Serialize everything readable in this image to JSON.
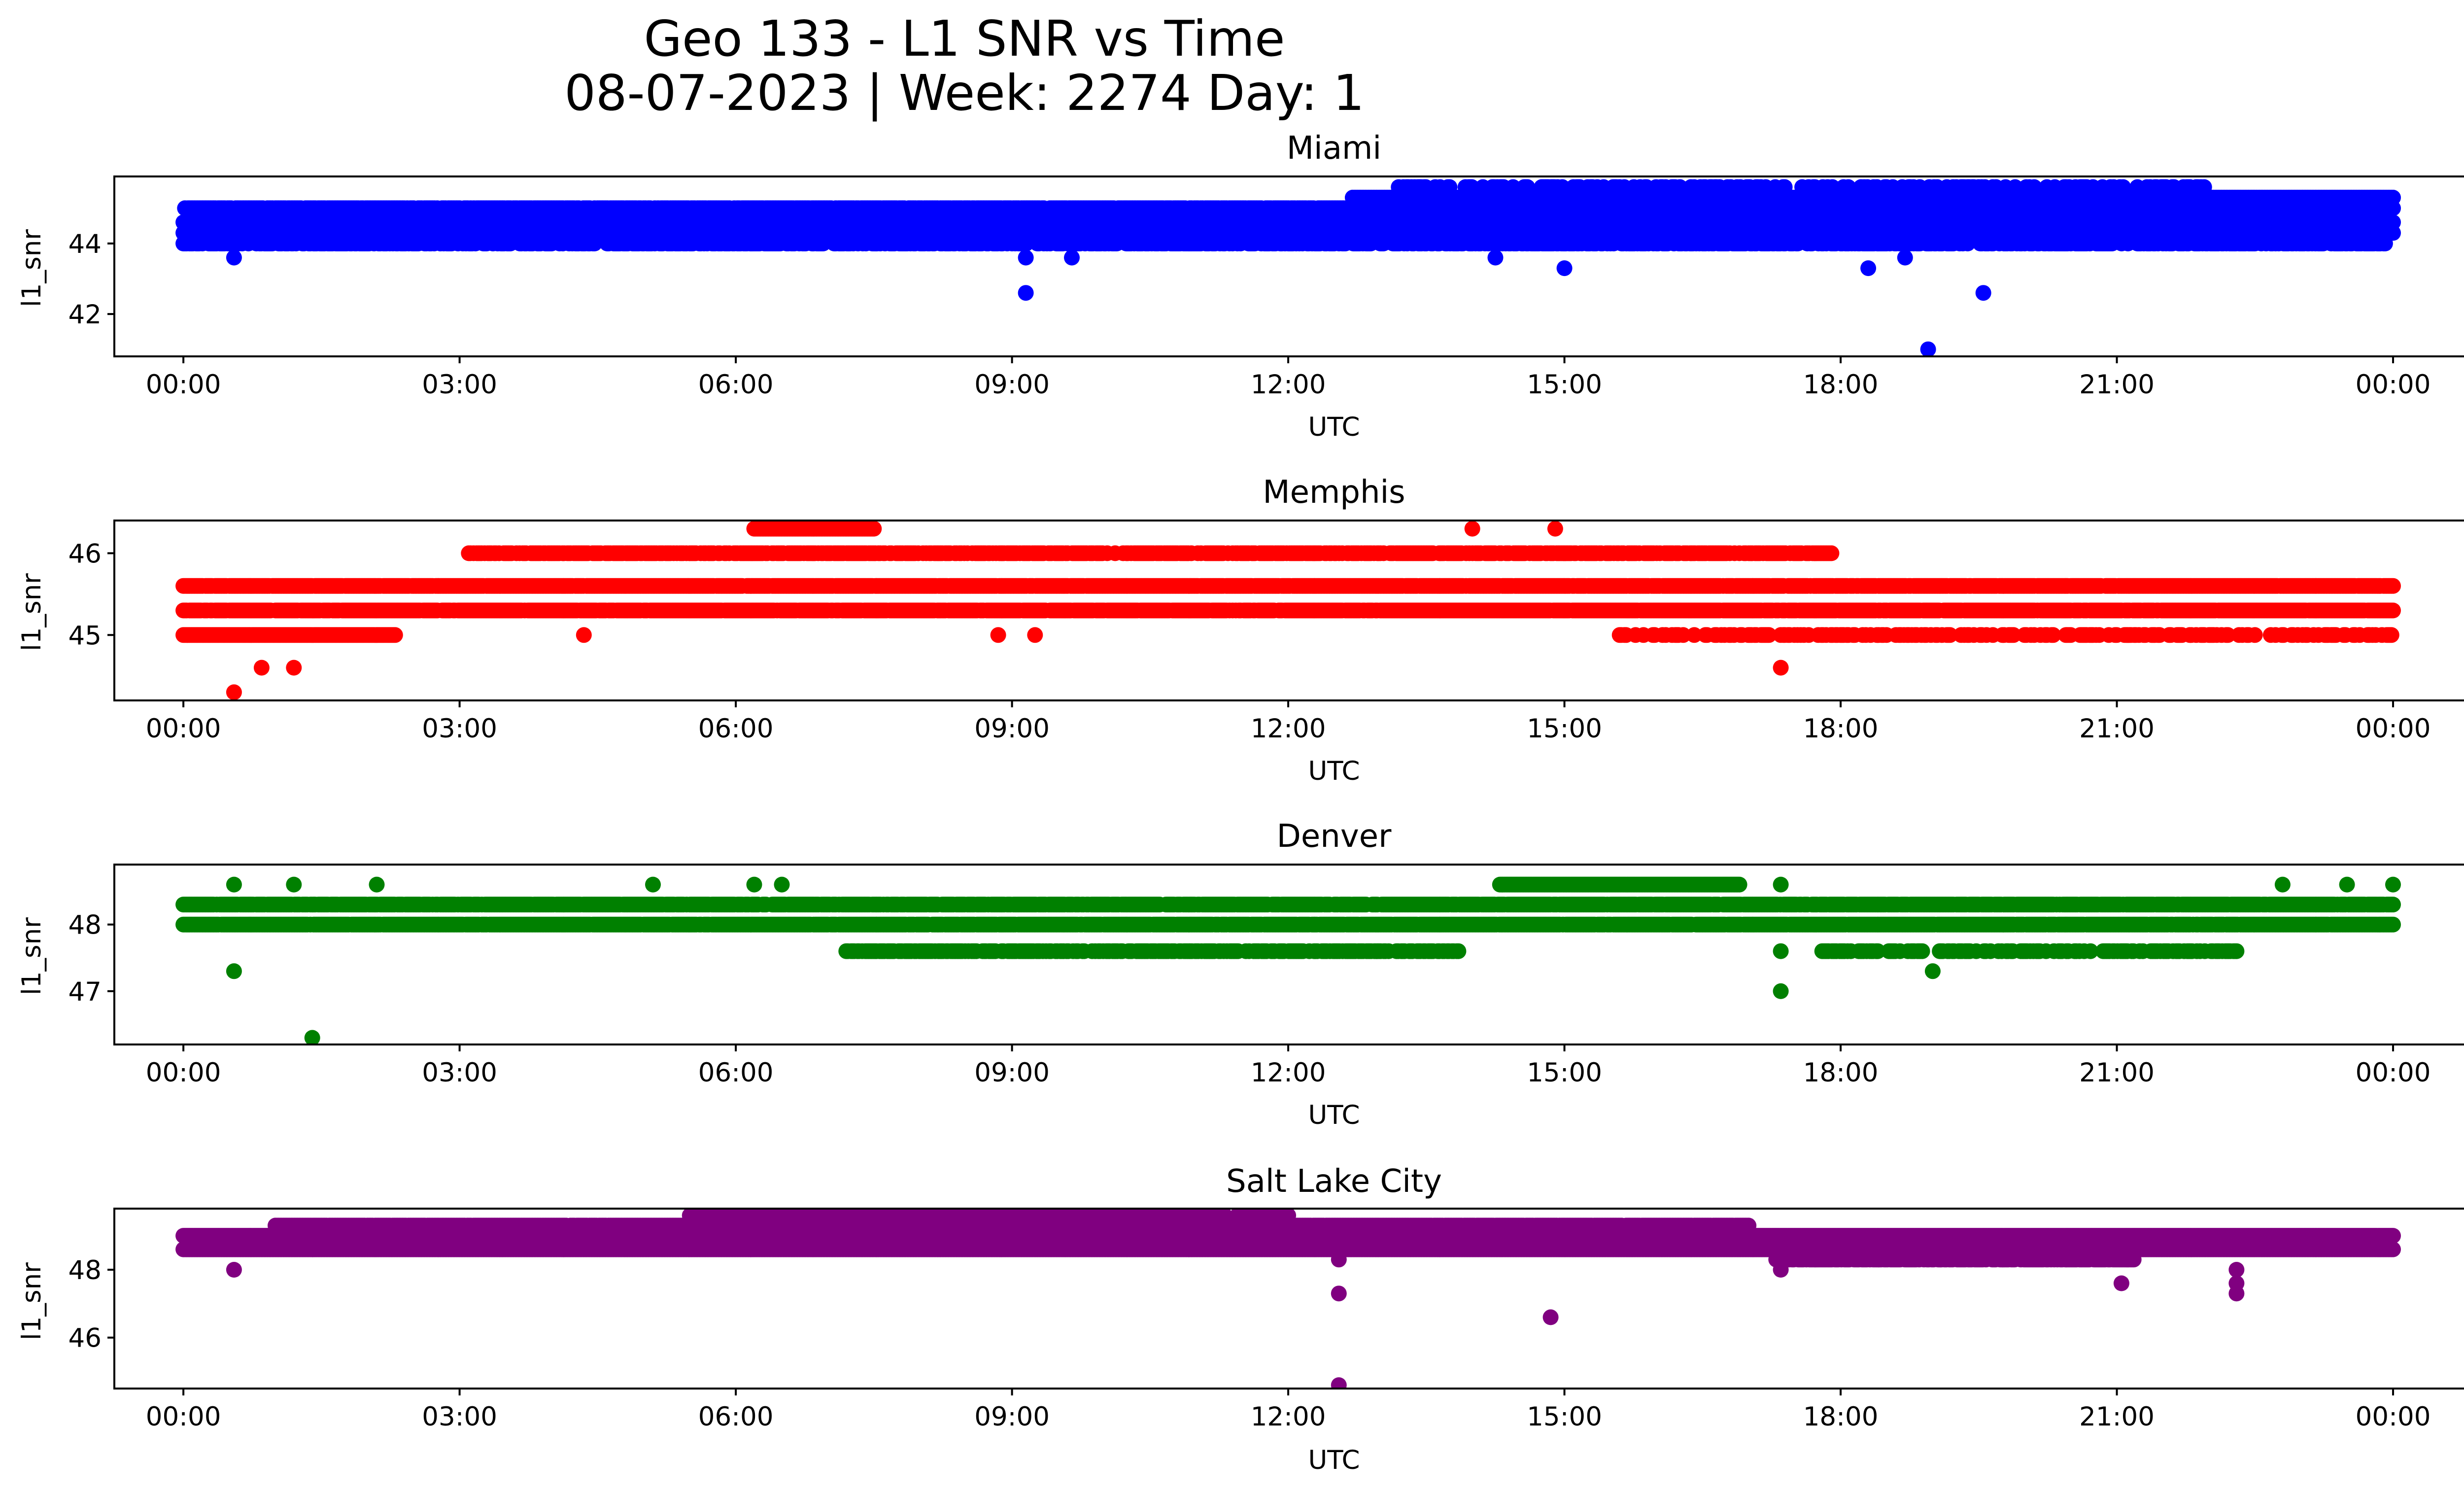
{
  "title_lines": [
    "Geo 133 - L1 SNR vs Time",
    "08-07-2023 | Week: 2274 Day: 1"
  ],
  "chart_data": [
    {
      "type": "scatter",
      "title": "Miami",
      "xlabel": "UTC",
      "ylabel": "l1_snr",
      "color": "#0000ff",
      "xlim": [
        -0.75,
        25.75
      ],
      "ylim": [
        40.8,
        45.9
      ],
      "xticks": [
        0,
        3,
        6,
        9,
        12,
        15,
        18,
        21,
        24
      ],
      "xtick_labels": [
        "00:00",
        "03:00",
        "06:00",
        "09:00",
        "12:00",
        "15:00",
        "18:00",
        "21:00",
        "00:00"
      ],
      "yticks": [
        42,
        44
      ],
      "ytick_labels": [
        "42",
        "44"
      ],
      "bands": [
        {
          "y": 44.0,
          "x0": 0,
          "x1": 24,
          "density": 0.6
        },
        {
          "y": 44.3,
          "x0": 0,
          "x1": 24,
          "density": 1.0
        },
        {
          "y": 44.6,
          "x0": 0,
          "x1": 24,
          "density": 1.0
        },
        {
          "y": 45.0,
          "x0": 0,
          "x1": 24,
          "density": 0.85
        },
        {
          "y": 45.3,
          "x0": 12.7,
          "x1": 24,
          "density": 1.0
        },
        {
          "y": 45.6,
          "x0": 13.2,
          "x1": 22.0,
          "density": 0.35
        }
      ],
      "outliers": [
        [
          0.55,
          43.6
        ],
        [
          9.15,
          43.6
        ],
        [
          9.15,
          42.6
        ],
        [
          9.65,
          43.6
        ],
        [
          14.25,
          43.6
        ],
        [
          15.0,
          43.3
        ],
        [
          18.3,
          43.3
        ],
        [
          18.7,
          43.6
        ],
        [
          18.95,
          41.0
        ],
        [
          18.95,
          44.0
        ],
        [
          19.55,
          42.6
        ]
      ]
    },
    {
      "type": "scatter",
      "title": "Memphis",
      "xlabel": "UTC",
      "ylabel": "l1_snr",
      "color": "#ff0000",
      "xlim": [
        -0.75,
        25.75
      ],
      "ylim": [
        44.2,
        46.4
      ],
      "xticks": [
        0,
        3,
        6,
        9,
        12,
        15,
        18,
        21,
        24
      ],
      "xtick_labels": [
        "00:00",
        "03:00",
        "06:00",
        "09:00",
        "12:00",
        "15:00",
        "18:00",
        "21:00",
        "00:00"
      ],
      "yticks": [
        45,
        46
      ],
      "ytick_labels": [
        "45",
        "46"
      ],
      "bands": [
        {
          "y": 45.0,
          "x0": 0,
          "x1": 2.3,
          "density": 1.0
        },
        {
          "y": 45.0,
          "x0": 15.6,
          "x1": 24,
          "density": 0.4
        },
        {
          "y": 45.3,
          "x0": 0,
          "x1": 24,
          "density": 0.95
        },
        {
          "y": 45.6,
          "x0": 0.0,
          "x1": 24,
          "density": 0.95
        },
        {
          "y": 46.0,
          "x0": 3.1,
          "x1": 17.9,
          "density": 0.75
        },
        {
          "y": 46.3,
          "x0": 6.2,
          "x1": 7.5,
          "density": 1.0
        }
      ],
      "outliers": [
        [
          0.55,
          44.3
        ],
        [
          0.85,
          44.6
        ],
        [
          1.2,
          44.6
        ],
        [
          4.35,
          45.0
        ],
        [
          8.85,
          45.0
        ],
        [
          9.05,
          46.0
        ],
        [
          9.25,
          45.0
        ],
        [
          14.0,
          46.3
        ],
        [
          14.9,
          46.3
        ],
        [
          17.35,
          44.6
        ],
        [
          17.35,
          45.0
        ],
        [
          22.0,
          45.0
        ]
      ]
    },
    {
      "type": "scatter",
      "title": "Denver",
      "xlabel": "UTC",
      "ylabel": "l1_snr",
      "color": "#008000",
      "xlim": [
        -0.75,
        25.75
      ],
      "ylim": [
        46.2,
        48.9
      ],
      "xticks": [
        0,
        3,
        6,
        9,
        12,
        15,
        18,
        21,
        24
      ],
      "xtick_labels": [
        "00:00",
        "03:00",
        "06:00",
        "09:00",
        "12:00",
        "15:00",
        "18:00",
        "21:00",
        "00:00"
      ],
      "yticks": [
        47,
        48
      ],
      "ytick_labels": [
        "47",
        "48"
      ],
      "bands": [
        {
          "y": 47.6,
          "x0": 7.2,
          "x1": 13.9,
          "density": 0.7
        },
        {
          "y": 47.6,
          "x0": 17.8,
          "x1": 22.3,
          "density": 0.55
        },
        {
          "y": 48.0,
          "x0": 0,
          "x1": 24,
          "density": 0.95
        },
        {
          "y": 48.3,
          "x0": 0,
          "x1": 24,
          "density": 0.9
        },
        {
          "y": 48.6,
          "x0": 14.3,
          "x1": 16.9,
          "density": 1.0
        }
      ],
      "outliers": [
        [
          0.55,
          47.3
        ],
        [
          0.55,
          48.6
        ],
        [
          1.4,
          46.3
        ],
        [
          1.2,
          48.6
        ],
        [
          2.1,
          48.6
        ],
        [
          5.1,
          48.6
        ],
        [
          6.2,
          48.6
        ],
        [
          6.5,
          48.6
        ],
        [
          17.35,
          47.0
        ],
        [
          17.35,
          47.6
        ],
        [
          17.35,
          48.6
        ],
        [
          19.0,
          47.3
        ],
        [
          22.8,
          48.6
        ],
        [
          23.5,
          48.6
        ],
        [
          24.0,
          48.6
        ]
      ]
    },
    {
      "type": "scatter",
      "title": "Salt Lake City",
      "xlabel": "UTC",
      "ylabel": "l1_snr",
      "color": "#800080",
      "xlim": [
        -0.75,
        25.75
      ],
      "ylim": [
        44.5,
        49.8
      ],
      "xticks": [
        0,
        3,
        6,
        9,
        12,
        15,
        18,
        21,
        24
      ],
      "xtick_labels": [
        "00:00",
        "03:00",
        "06:00",
        "09:00",
        "12:00",
        "15:00",
        "18:00",
        "21:00",
        "00:00"
      ],
      "yticks": [
        46,
        48
      ],
      "ytick_labels": [
        "46",
        "48"
      ],
      "bands": [
        {
          "y": 48.3,
          "x0": 17.3,
          "x1": 21.2,
          "density": 0.8
        },
        {
          "y": 48.6,
          "x0": 0,
          "x1": 24,
          "density": 1.0
        },
        {
          "y": 49.0,
          "x0": 0,
          "x1": 24,
          "density": 1.0
        },
        {
          "y": 49.3,
          "x0": 1.0,
          "x1": 17.0,
          "density": 0.95
        },
        {
          "y": 49.6,
          "x0": 5.5,
          "x1": 12.0,
          "density": 0.7
        }
      ],
      "outliers": [
        [
          0.55,
          48.0
        ],
        [
          12.55,
          47.3
        ],
        [
          12.55,
          44.6
        ],
        [
          12.55,
          48.3
        ],
        [
          14.85,
          46.6
        ],
        [
          17.35,
          48.0
        ],
        [
          21.05,
          47.6
        ],
        [
          22.3,
          47.3
        ],
        [
          22.3,
          47.6
        ],
        [
          22.3,
          48.0
        ]
      ]
    }
  ]
}
